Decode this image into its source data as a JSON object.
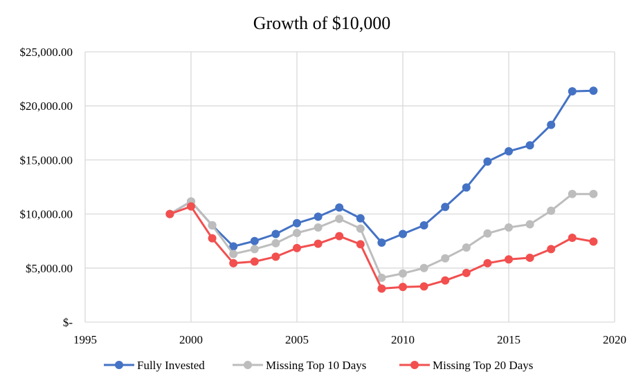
{
  "chart_data": {
    "type": "line",
    "title": "Growth of $10,000",
    "xlabel": "",
    "ylabel": "",
    "xlim": [
      1995,
      2020
    ],
    "ylim": [
      0,
      25000
    ],
    "x_ticks": [
      1995,
      2000,
      2005,
      2010,
      2015,
      2020
    ],
    "y_ticks": [
      0,
      5000,
      10000,
      15000,
      20000,
      25000
    ],
    "y_tick_labels": [
      "$-",
      "$5,000.00",
      "$10,000.00",
      "$15,000.00",
      "$20,000.00",
      "$25,000.00"
    ],
    "grid": true,
    "legend_position": "bottom",
    "x": [
      1999,
      2000,
      2001,
      2002,
      2003,
      2004,
      2005,
      2006,
      2007,
      2008,
      2009,
      2010,
      2011,
      2012,
      2013,
      2014,
      2015,
      2016,
      2017,
      2018,
      2019
    ],
    "series": [
      {
        "name": "Fully Invested",
        "color": "#4472C4",
        "values": [
          10000,
          11150,
          8950,
          7000,
          7500,
          8150,
          9150,
          9750,
          10600,
          9600,
          7350,
          8150,
          8950,
          10650,
          12450,
          14850,
          15800,
          16350,
          18250,
          21350,
          21400
        ]
      },
      {
        "name": "Missing Top 10 Days",
        "color": "#BDBDBD",
        "values": [
          10000,
          11150,
          8950,
          6300,
          6750,
          7300,
          8250,
          8750,
          9550,
          8650,
          4100,
          4500,
          5000,
          5900,
          6900,
          8200,
          8750,
          9050,
          10300,
          11850,
          11850
        ]
      },
      {
        "name": "Missing Top 20 Days",
        "color": "#F24F4F",
        "values": [
          10000,
          10700,
          7750,
          5450,
          5600,
          6050,
          6850,
          7250,
          7950,
          7200,
          3100,
          3250,
          3300,
          3850,
          4550,
          5450,
          5800,
          5950,
          6750,
          7800,
          7450
        ]
      }
    ]
  }
}
